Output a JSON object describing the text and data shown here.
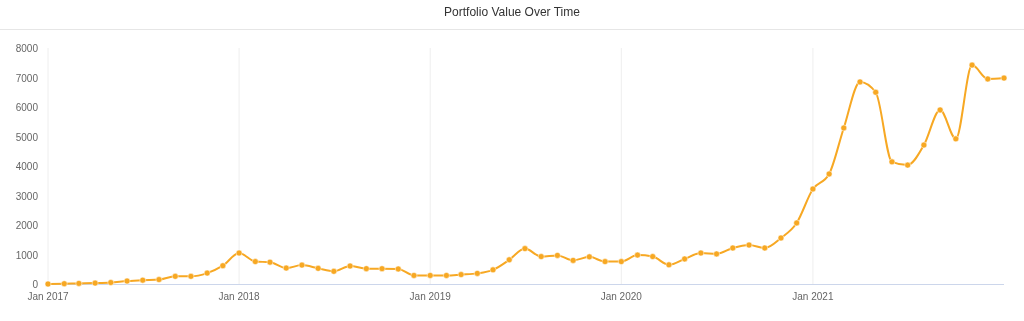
{
  "chart_data": {
    "type": "line",
    "title": "Portfolio Value Over Time",
    "x": [
      "2017-01",
      "2017-02",
      "2017-03",
      "2017-04",
      "2017-05",
      "2017-06",
      "2017-07",
      "2017-08",
      "2017-09",
      "2017-10",
      "2017-11",
      "2017-12",
      "2018-01",
      "2018-02",
      "2018-03",
      "2018-04",
      "2018-05",
      "2018-06",
      "2018-07",
      "2018-08",
      "2018-09",
      "2018-10",
      "2018-11",
      "2018-12",
      "2019-01",
      "2019-02",
      "2019-03",
      "2019-04",
      "2019-05",
      "2019-06",
      "2019-07",
      "2019-08",
      "2019-09",
      "2019-10",
      "2019-11",
      "2019-12",
      "2020-01",
      "2020-02",
      "2020-03",
      "2020-04",
      "2020-05",
      "2020-06",
      "2020-07",
      "2020-08",
      "2020-09",
      "2020-10",
      "2020-11",
      "2020-12",
      "2021-01",
      "2021-02",
      "2021-03",
      "2021-04",
      "2021-05",
      "2021-06",
      "2021-07",
      "2021-08",
      "2021-09",
      "2021-10",
      "2021-11",
      "2021-12",
      "2022-01"
    ],
    "series": [
      {
        "color": "#f7a823",
        "values": [
          0,
          10,
          20,
          30,
          50,
          100,
          130,
          150,
          260,
          260,
          370,
          620,
          1050,
          760,
          740,
          540,
          640,
          530,
          430,
          610,
          520,
          520,
          510,
          290,
          290,
          290,
          320,
          360,
          480,
          820,
          1200,
          930,
          970,
          800,
          920,
          760,
          760,
          980,
          930,
          650,
          850,
          1050,
          1020,
          1220,
          1320,
          1220,
          1560,
          2070,
          3220,
          3730,
          5290,
          6850,
          6500,
          4140,
          4030,
          4710,
          5900,
          4920,
          7420,
          6950,
          6980
        ]
      }
    ],
    "xlim": [
      "2017-01",
      "2022-01"
    ],
    "xticks": [
      {
        "value": "2017-01",
        "label": "Jan 2017"
      },
      {
        "value": "2018-01",
        "label": "Jan 2018"
      },
      {
        "value": "2019-01",
        "label": "Jan 2019"
      },
      {
        "value": "2020-01",
        "label": "Jan 2020"
      },
      {
        "value": "2021-01",
        "label": "Jan 2021"
      }
    ],
    "ylim": [
      0,
      8000
    ],
    "yticks": [
      0,
      1000,
      2000,
      3000,
      4000,
      5000,
      6000,
      7000,
      8000
    ],
    "grid": "x",
    "marker": "circle",
    "line_style": "solid"
  }
}
